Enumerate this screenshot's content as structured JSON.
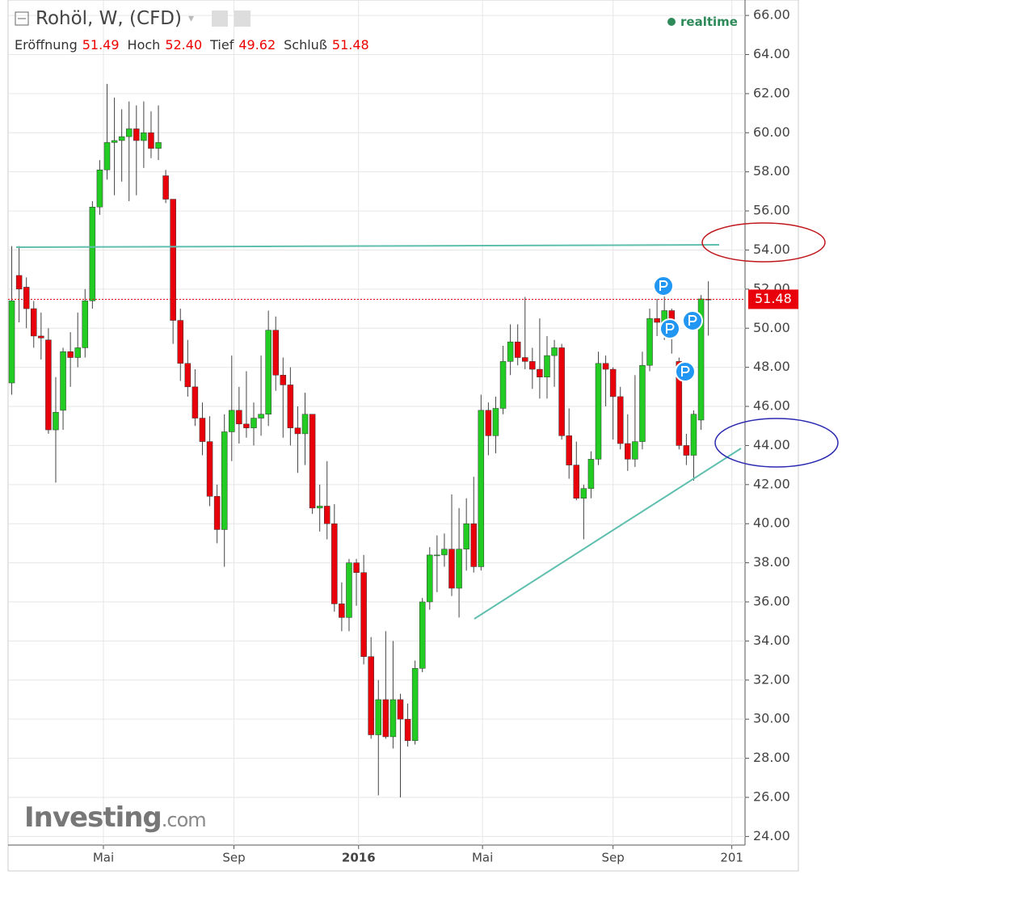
{
  "chart_data": {
    "type": "candlestick",
    "title": "Rohöl, W, (CFD)",
    "status": "realtime",
    "header": {
      "labels": [
        "Eröffnung",
        "Hoch",
        "Tief",
        "Schluß"
      ],
      "values": [
        51.49,
        52.4,
        49.62,
        51.48
      ],
      "value_labels": [
        "51.49",
        "52.40",
        "49.62",
        "51.48"
      ]
    },
    "watermark": [
      "Investing",
      ".com"
    ],
    "up_color": "#22cc22",
    "down_color": "#e8000b",
    "xlim": [
      -0.5,
      100
    ],
    "xticks": [
      {
        "value": 12.5,
        "label": "Mai"
      },
      {
        "value": 30.3,
        "label": "Sep"
      },
      {
        "value": 47.3,
        "label": "2016"
      },
      {
        "value": 64.2,
        "label": "Mai"
      },
      {
        "value": 82.0,
        "label": "Sep"
      },
      {
        "value": 98.2,
        "label": "201"
      }
    ],
    "ylim": [
      23.56,
      66.79
    ],
    "yticks": [
      {
        "value": 24,
        "label": "24.00"
      },
      {
        "value": 26,
        "label": "26.00"
      },
      {
        "value": 28,
        "label": "28.00"
      },
      {
        "value": 30,
        "label": "30.00"
      },
      {
        "value": 32,
        "label": "32.00"
      },
      {
        "value": 34,
        "label": "34.00"
      },
      {
        "value": 36,
        "label": "36.00"
      },
      {
        "value": 38,
        "label": "38.00"
      },
      {
        "value": 40,
        "label": "40.00"
      },
      {
        "value": 42,
        "label": "42.00"
      },
      {
        "value": 44,
        "label": "44.00"
      },
      {
        "value": 46,
        "label": "46.00"
      },
      {
        "value": 48,
        "label": "48.00"
      },
      {
        "value": 50,
        "label": "50.00"
      },
      {
        "value": 52,
        "label": "52.00"
      },
      {
        "value": 54,
        "label": "54.00"
      },
      {
        "value": 56,
        "label": "56.00"
      },
      {
        "value": 58,
        "label": "58.00"
      },
      {
        "value": 60,
        "label": "60.00"
      },
      {
        "value": 62,
        "label": "62.00"
      },
      {
        "value": 64,
        "label": "64.00"
      },
      {
        "value": 66,
        "label": "66.00"
      }
    ],
    "grid": true,
    "ohlc": [
      [
        47.2,
        54.2,
        46.6,
        51.4
      ],
      [
        52.7,
        54.2,
        50.3,
        52.0
      ],
      [
        52.1,
        52.6,
        50.0,
        51.0
      ],
      [
        51.0,
        51.4,
        49.0,
        49.6
      ],
      [
        49.6,
        50.8,
        48.4,
        49.5
      ],
      [
        49.4,
        50.0,
        44.6,
        44.8
      ],
      [
        44.8,
        47.5,
        42.1,
        45.7
      ],
      [
        45.8,
        49.0,
        44.8,
        48.8
      ],
      [
        48.8,
        49.8,
        47.0,
        48.5
      ],
      [
        48.5,
        50.8,
        48.0,
        49.0
      ],
      [
        49.0,
        52.0,
        48.5,
        51.4
      ],
      [
        51.4,
        56.5,
        51.0,
        56.2
      ],
      [
        56.2,
        58.6,
        55.8,
        58.1
      ],
      [
        58.1,
        62.5,
        57.6,
        59.5
      ],
      [
        59.5,
        61.8,
        56.8,
        59.6
      ],
      [
        59.6,
        61.2,
        57.5,
        59.8
      ],
      [
        59.8,
        61.6,
        56.5,
        60.2
      ],
      [
        60.2,
        61.4,
        56.8,
        59.6
      ],
      [
        59.6,
        61.6,
        58.2,
        60.0
      ],
      [
        60.0,
        61.1,
        58.7,
        59.2
      ],
      [
        59.2,
        61.4,
        58.6,
        59.5
      ],
      [
        57.8,
        58.1,
        56.4,
        56.6
      ],
      [
        56.6,
        56.6,
        49.2,
        50.4
      ],
      [
        50.4,
        51.0,
        47.3,
        48.2
      ],
      [
        48.2,
        49.4,
        46.5,
        47.0
      ],
      [
        47.0,
        47.9,
        45.0,
        45.4
      ],
      [
        45.4,
        46.2,
        43.5,
        44.2
      ],
      [
        44.2,
        45.5,
        40.9,
        41.4
      ],
      [
        41.4,
        42.0,
        39.0,
        39.7
      ],
      [
        39.7,
        45.6,
        37.8,
        44.7
      ],
      [
        44.7,
        48.6,
        43.2,
        45.8
      ],
      [
        45.8,
        47.0,
        44.1,
        45.1
      ],
      [
        45.1,
        47.8,
        44.4,
        44.9
      ],
      [
        44.9,
        46.2,
        44.0,
        45.4
      ],
      [
        45.4,
        48.6,
        44.5,
        45.6
      ],
      [
        45.6,
        50.9,
        45.0,
        49.9
      ],
      [
        49.9,
        50.6,
        46.8,
        47.6
      ],
      [
        47.6,
        48.5,
        44.4,
        47.1
      ],
      [
        47.1,
        48.0,
        44.0,
        44.9
      ],
      [
        44.9,
        46.0,
        42.6,
        44.6
      ],
      [
        44.6,
        46.7,
        43.0,
        45.6
      ],
      [
        45.6,
        45.6,
        40.5,
        40.8
      ],
      [
        40.8,
        42.0,
        39.6,
        40.9
      ],
      [
        40.9,
        43.2,
        39.2,
        40.0
      ],
      [
        40.0,
        41.0,
        35.5,
        35.9
      ],
      [
        35.9,
        37.0,
        34.5,
        35.2
      ],
      [
        35.2,
        38.2,
        34.5,
        38.0
      ],
      [
        38.0,
        38.2,
        35.8,
        37.5
      ],
      [
        37.5,
        38.4,
        32.8,
        33.2
      ],
      [
        33.2,
        34.2,
        29.0,
        29.2
      ],
      [
        29.2,
        32.0,
        26.1,
        31.0
      ],
      [
        31.0,
        34.5,
        29.0,
        29.1
      ],
      [
        29.1,
        34.0,
        28.5,
        31.0
      ],
      [
        31.0,
        31.3,
        26.0,
        30.0
      ],
      [
        30.0,
        30.8,
        28.6,
        28.9
      ],
      [
        28.9,
        33.0,
        28.7,
        32.6
      ],
      [
        32.6,
        36.2,
        32.4,
        36.0
      ],
      [
        36.0,
        38.8,
        35.6,
        38.4
      ],
      [
        38.4,
        39.4,
        36.5,
        38.4
      ],
      [
        38.4,
        39.5,
        37.8,
        38.7
      ],
      [
        38.7,
        41.5,
        36.3,
        36.7
      ],
      [
        36.7,
        40.8,
        35.2,
        38.7
      ],
      [
        38.7,
        41.3,
        37.6,
        40.0
      ],
      [
        40.0,
        42.4,
        37.5,
        37.8
      ],
      [
        37.8,
        46.6,
        37.6,
        45.8
      ],
      [
        45.8,
        46.2,
        43.5,
        44.5
      ],
      [
        44.5,
        46.5,
        43.6,
        45.9
      ],
      [
        45.9,
        49.1,
        45.6,
        48.3
      ],
      [
        48.3,
        50.2,
        47.6,
        49.3
      ],
      [
        49.3,
        50.2,
        48.1,
        48.5
      ],
      [
        48.5,
        51.6,
        47.9,
        48.3
      ],
      [
        48.3,
        49.0,
        46.9,
        47.9
      ],
      [
        47.9,
        50.5,
        46.4,
        47.5
      ],
      [
        47.5,
        49.6,
        46.4,
        48.6
      ],
      [
        48.6,
        49.4,
        47.0,
        49.0
      ],
      [
        49.0,
        49.2,
        44.3,
        44.5
      ],
      [
        44.5,
        45.9,
        42.3,
        43.0
      ],
      [
        43.0,
        44.2,
        41.2,
        41.3
      ],
      [
        41.3,
        42.0,
        39.2,
        41.8
      ],
      [
        41.8,
        43.7,
        41.3,
        43.3
      ],
      [
        43.3,
        48.8,
        43.0,
        48.2
      ],
      [
        48.2,
        48.6,
        46.0,
        47.9
      ],
      [
        47.9,
        48.0,
        44.3,
        46.5
      ],
      [
        46.5,
        47.0,
        43.8,
        44.1
      ],
      [
        44.1,
        45.6,
        42.7,
        43.3
      ],
      [
        43.3,
        47.6,
        42.9,
        44.2
      ],
      [
        44.2,
        48.8,
        43.8,
        48.1
      ],
      [
        48.1,
        51.0,
        47.8,
        50.5
      ],
      [
        50.5,
        51.5,
        49.6,
        50.3
      ],
      [
        50.3,
        51.8,
        49.4,
        50.9
      ],
      [
        50.9,
        51.0,
        48.7,
        49.5
      ],
      [
        48.3,
        48.5,
        43.8,
        44.0
      ],
      [
        44.0,
        44.6,
        43.0,
        43.5
      ],
      [
        43.5,
        45.8,
        42.2,
        45.6
      ],
      [
        45.3,
        51.7,
        44.8,
        51.5
      ],
      [
        51.49,
        52.4,
        49.62,
        51.48
      ]
    ]
  }
}
